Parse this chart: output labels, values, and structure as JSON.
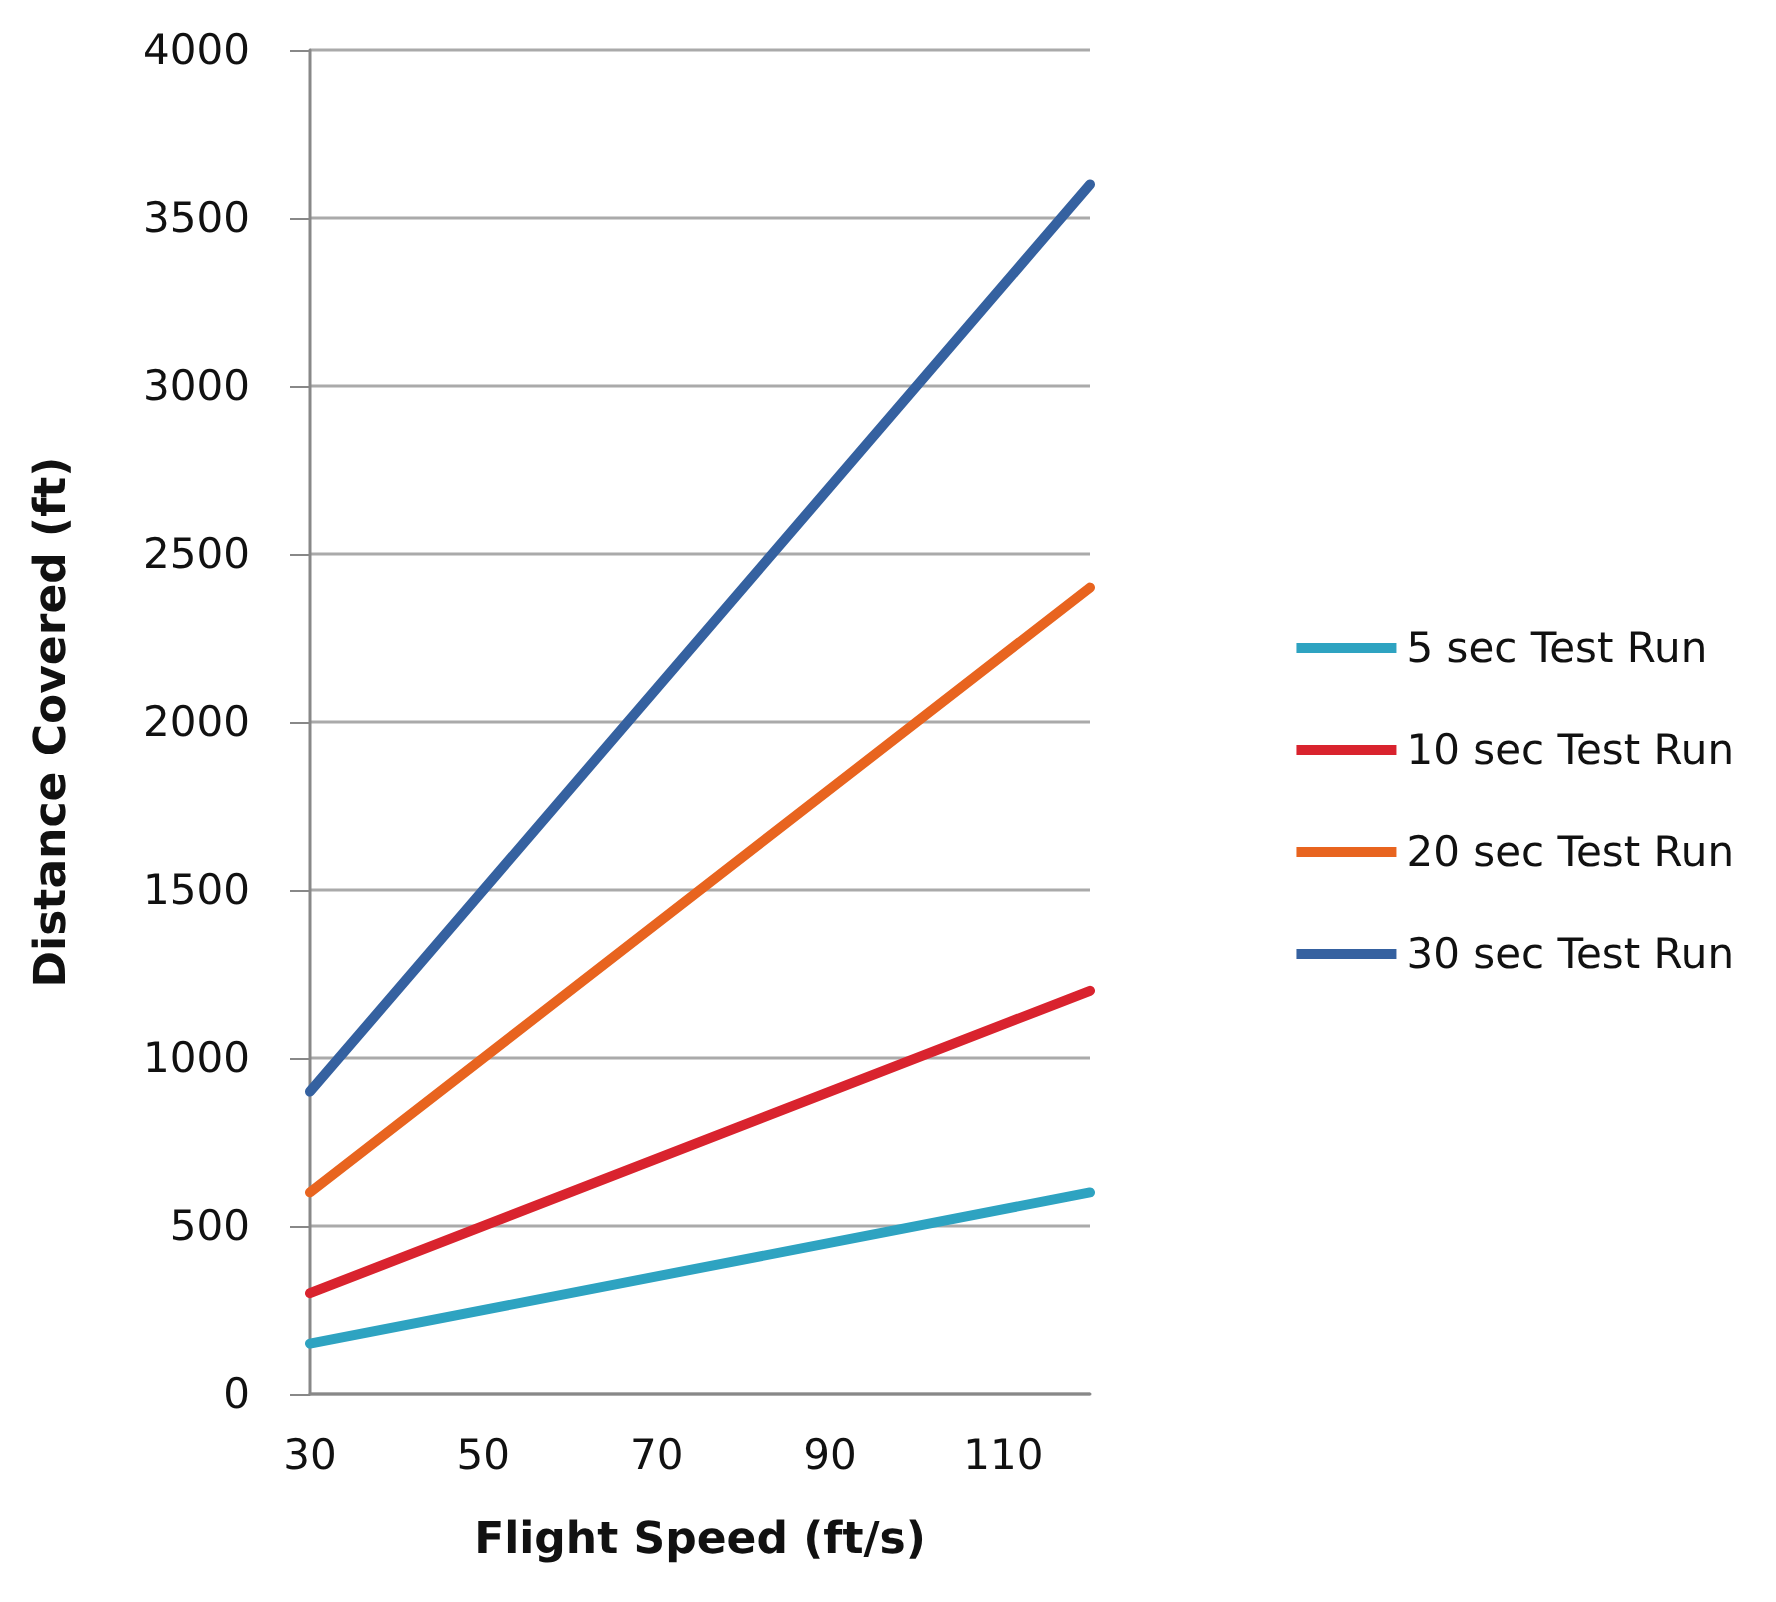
{
  "chart_data": {
    "type": "line",
    "xlabel": "Flight Speed (ft/s)",
    "ylabel": "Distance Covered (ft)",
    "x": [
      30,
      120
    ],
    "series": [
      {
        "name": "5 sec Test Run",
        "color": "#2ea3c1",
        "values": [
          150,
          600
        ]
      },
      {
        "name": "10 sec Test Run",
        "color": "#d9232e",
        "values": [
          300,
          1200
        ]
      },
      {
        "name": "20 sec Test Run",
        "color": "#e8641f",
        "values": [
          600,
          2400
        ]
      },
      {
        "name": "30 sec Test Run",
        "color": "#3561a0",
        "values": [
          900,
          3600
        ]
      }
    ],
    "xlim": [
      30,
      120
    ],
    "xticks": [
      30,
      50,
      70,
      90,
      110
    ],
    "ylim": [
      0,
      4000
    ],
    "yticks": [
      0,
      500,
      1000,
      1500,
      2000,
      2500,
      3000,
      3500,
      4000
    ],
    "grid": "y",
    "legend": "right",
    "marker": "none",
    "line_style": "solid"
  }
}
